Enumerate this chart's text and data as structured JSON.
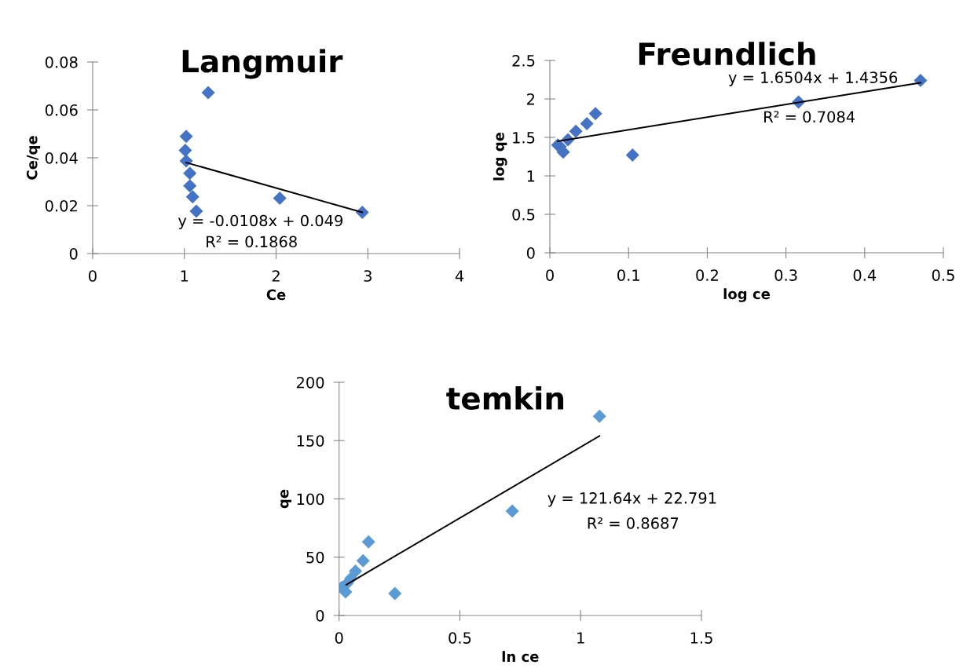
{
  "chart_data": [
    {
      "type": "scatter",
      "title": "Langmuir",
      "xlabel": "Ce",
      "ylabel": "Ce/qe",
      "xlim": [
        0,
        4
      ],
      "xticks": [
        0,
        1,
        2,
        3,
        4
      ],
      "ylim": [
        0,
        0.08
      ],
      "yticks": [
        0,
        0.02,
        0.04,
        0.06,
        0.08
      ],
      "grid": false,
      "legend": false,
      "marker": "diamond",
      "annotations": [
        "y = -0.0108x + 0.049",
        "R² = 0.1868"
      ],
      "series": [
        {
          "color": "#4472c4",
          "x": [
            1.26,
            1.02,
            1.01,
            1.02,
            1.06,
            1.06,
            1.09,
            1.13,
            2.04,
            2.94
          ],
          "values": [
            0.0672,
            0.0489,
            0.0431,
            0.0387,
            0.0335,
            0.0283,
            0.0237,
            0.0177,
            0.0231,
            0.0172
          ]
        },
        {
          "type": "line",
          "color": "#000000",
          "marker": "none",
          "x": [
            1.02,
            2.94
          ],
          "values": [
            0.038,
            0.0172
          ]
        }
      ]
    },
    {
      "type": "scatter",
      "title": "Freundlich",
      "xlabel": "log ce",
      "ylabel": "log qe",
      "xlim": [
        0,
        0.5
      ],
      "xticks": [
        0,
        0.1,
        0.2,
        0.3,
        0.4,
        0.5
      ],
      "ylim": [
        0,
        2.5
      ],
      "yticks": [
        0,
        0.5,
        1,
        1.5,
        2,
        2.5
      ],
      "grid": false,
      "legend": false,
      "marker": "diamond",
      "annotations": [
        "y = 1.6504x + 1.4356",
        "R² = 0.7084"
      ],
      "series": [
        {
          "color": "#4472c4",
          "x": [
            0.01,
            0.013,
            0.017,
            0.023,
            0.033,
            0.047,
            0.058,
            0.105,
            0.316,
            0.471
          ],
          "values": [
            1.4,
            1.38,
            1.31,
            1.47,
            1.58,
            1.68,
            1.81,
            1.27,
            1.96,
            2.24
          ]
        },
        {
          "type": "line",
          "color": "#000000",
          "marker": "none",
          "x": [
            0.01,
            0.471
          ],
          "values": [
            1.45,
            2.21
          ]
        }
      ]
    },
    {
      "type": "scatter",
      "title": "temkin",
      "xlabel": "ln ce",
      "ylabel": "qe",
      "xlim": [
        0,
        1.5
      ],
      "xticks": [
        0,
        0.5,
        1,
        1.5
      ],
      "ylim": [
        0,
        200
      ],
      "yticks": [
        0,
        50,
        100,
        150,
        200
      ],
      "grid": false,
      "legend": false,
      "marker": "diamond",
      "annotations": [
        "y = 121.64x + 22.791",
        "R² = 0.8687"
      ],
      "series": [
        {
          "color": "#5b9bd5",
          "x": [
            1.078,
            0.717,
            0.122,
            0.0995,
            0.068,
            0.049,
            0.0325,
            0.011,
            0.027,
            0.231
          ],
          "values": [
            170.8,
            89.6,
            63.2,
            47,
            38.1,
            31.8,
            27.4,
            24,
            20.2,
            18.8
          ]
        },
        {
          "type": "line",
          "color": "#000000",
          "marker": "none",
          "x": [
            0.03,
            1.078
          ],
          "values": [
            26.4,
            153.9
          ]
        }
      ]
    }
  ]
}
